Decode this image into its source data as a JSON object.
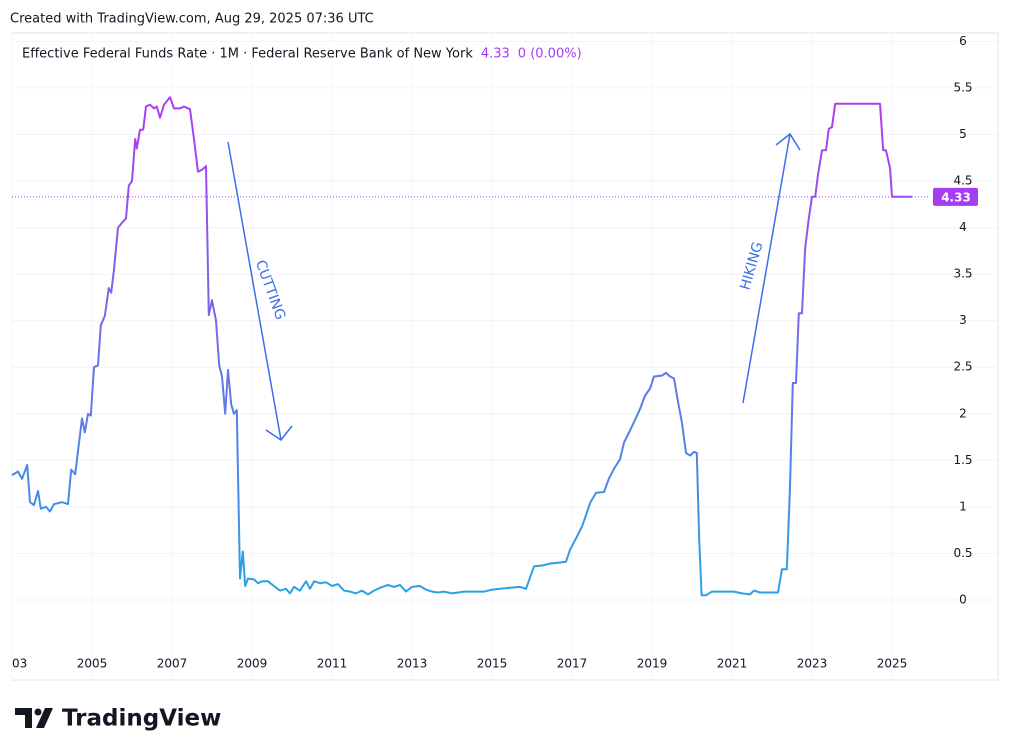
{
  "page": {
    "created": "Created with TradingView.com, Aug 29, 2025 07:36 UTC",
    "brand": "TradingView"
  },
  "chart_data": {
    "type": "line",
    "title": "Effective Federal Funds Rate · 1M · Federal Reserve Bank of New York",
    "last_value": 4.33,
    "change": "0 (0.00%)",
    "annotations": [
      "CUTTING",
      "HIKING"
    ],
    "line_gradient": [
      "#29a3e4",
      "#b03bf2"
    ],
    "last_value_color": "#a53df0",
    "grid": true,
    "xlim": [
      2003,
      2025.95
    ],
    "xticks": [
      {
        "value": 2003,
        "label": "03"
      },
      2005,
      2007,
      2009,
      2011,
      2013,
      2015,
      2017,
      2019,
      2021,
      2023,
      2025
    ],
    "ylim": [
      -0.86,
      6.09
    ],
    "yticks": [
      0,
      0.5,
      1,
      1.5,
      2,
      2.5,
      3,
      3.5,
      4,
      4.5,
      5,
      5.5,
      6
    ],
    "x": [
      2003.0,
      2003.15,
      2003.25,
      2003.38,
      2003.45,
      2003.55,
      2003.65,
      2003.72,
      2003.85,
      2003.95,
      2004.05,
      2004.25,
      2004.4,
      2004.48,
      2004.58,
      2004.65,
      2004.75,
      2004.82,
      2004.9,
      2004.97,
      2005.05,
      2005.15,
      2005.22,
      2005.32,
      2005.42,
      2005.48,
      2005.55,
      2005.65,
      2005.75,
      2005.85,
      2005.92,
      2006.0,
      2006.08,
      2006.12,
      2006.2,
      2006.28,
      2006.35,
      2006.45,
      2006.55,
      2006.62,
      2006.7,
      2006.8,
      2006.95,
      2007.05,
      2007.2,
      2007.3,
      2007.45,
      2007.55,
      2007.65,
      2007.75,
      2007.85,
      2007.92,
      2008.0,
      2008.1,
      2008.18,
      2008.25,
      2008.33,
      2008.4,
      2008.48,
      2008.55,
      2008.62,
      2008.7,
      2008.77,
      2008.83,
      2008.9,
      2009.05,
      2009.15,
      2009.25,
      2009.4,
      2009.55,
      2009.7,
      2009.85,
      2009.95,
      2010.05,
      2010.2,
      2010.35,
      2010.45,
      2010.55,
      2010.7,
      2010.85,
      2011.0,
      2011.15,
      2011.3,
      2011.45,
      2011.6,
      2011.75,
      2011.9,
      2012.05,
      2012.2,
      2012.4,
      2012.55,
      2012.7,
      2012.85,
      2013.0,
      2013.2,
      2013.35,
      2013.5,
      2013.65,
      2013.8,
      2014.0,
      2014.3,
      2014.55,
      2014.8,
      2015.0,
      2015.2,
      2015.45,
      2015.7,
      2015.85,
      2015.95,
      2016.05,
      2016.25,
      2016.45,
      2016.65,
      2016.85,
      2016.95,
      2017.1,
      2017.25,
      2017.35,
      2017.45,
      2017.6,
      2017.8,
      2017.92,
      2018.05,
      2018.2,
      2018.3,
      2018.45,
      2018.55,
      2018.7,
      2018.82,
      2018.95,
      2019.05,
      2019.25,
      2019.35,
      2019.45,
      2019.55,
      2019.65,
      2019.75,
      2019.85,
      2019.95,
      2020.05,
      2020.12,
      2020.18,
      2020.24,
      2020.35,
      2020.5,
      2020.7,
      2020.9,
      2021.05,
      2021.25,
      2021.45,
      2021.55,
      2021.7,
      2021.85,
      2022.0,
      2022.15,
      2022.25,
      2022.37,
      2022.45,
      2022.52,
      2022.6,
      2022.67,
      2022.75,
      2022.83,
      2022.92,
      2023.0,
      2023.08,
      2023.15,
      2023.25,
      2023.35,
      2023.42,
      2023.5,
      2023.58,
      2024.0,
      2024.5,
      2024.7,
      2024.78,
      2024.85,
      2024.95,
      2025.0,
      2025.5
    ],
    "series": [
      {
        "name": "Effective Federal Funds Rate",
        "color": "#a53df0",
        "values": [
          1.34,
          1.38,
          1.3,
          1.45,
          1.05,
          1.02,
          1.17,
          0.98,
          1.0,
          0.95,
          1.03,
          1.05,
          1.03,
          1.4,
          1.35,
          1.6,
          1.95,
          1.8,
          2.0,
          1.98,
          2.5,
          2.52,
          2.95,
          3.05,
          3.35,
          3.3,
          3.55,
          4.0,
          4.05,
          4.1,
          4.45,
          4.5,
          4.95,
          4.85,
          5.05,
          5.05,
          5.3,
          5.32,
          5.28,
          5.3,
          5.18,
          5.32,
          5.4,
          5.28,
          5.28,
          5.3,
          5.27,
          4.95,
          4.6,
          4.62,
          4.66,
          3.06,
          3.22,
          3.0,
          2.52,
          2.4,
          2.0,
          2.47,
          2.1,
          2.0,
          2.04,
          0.23,
          0.52,
          0.15,
          0.23,
          0.22,
          0.18,
          0.2,
          0.2,
          0.15,
          0.1,
          0.12,
          0.07,
          0.14,
          0.1,
          0.2,
          0.12,
          0.2,
          0.18,
          0.19,
          0.15,
          0.17,
          0.1,
          0.09,
          0.07,
          0.1,
          0.06,
          0.1,
          0.13,
          0.16,
          0.14,
          0.16,
          0.09,
          0.14,
          0.15,
          0.11,
          0.09,
          0.08,
          0.09,
          0.07,
          0.09,
          0.09,
          0.09,
          0.11,
          0.12,
          0.13,
          0.14,
          0.12,
          0.24,
          0.36,
          0.37,
          0.39,
          0.4,
          0.41,
          0.54,
          0.66,
          0.79,
          0.91,
          1.04,
          1.15,
          1.16,
          1.3,
          1.41,
          1.51,
          1.69,
          1.82,
          1.91,
          2.05,
          2.19,
          2.27,
          2.4,
          2.41,
          2.44,
          2.4,
          2.38,
          2.13,
          1.9,
          1.58,
          1.55,
          1.59,
          1.58,
          0.65,
          0.05,
          0.05,
          0.09,
          0.09,
          0.09,
          0.09,
          0.07,
          0.06,
          0.1,
          0.08,
          0.08,
          0.08,
          0.08,
          0.33,
          0.33,
          1.21,
          2.33,
          2.33,
          3.08,
          3.08,
          3.78,
          4.1,
          4.33,
          4.33,
          4.57,
          4.83,
          4.83,
          5.06,
          5.08,
          5.33,
          5.33,
          5.33,
          5.33,
          4.83,
          4.83,
          4.64,
          4.33,
          4.33
        ]
      }
    ]
  }
}
